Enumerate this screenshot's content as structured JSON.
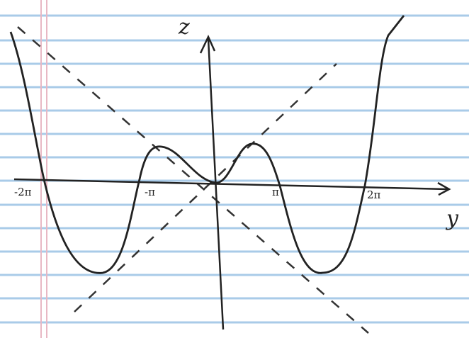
{
  "axes": {
    "vertical_label": "z",
    "horizontal_label": "y",
    "ticks": [
      "-2π",
      "-π",
      "π",
      "2π"
    ]
  }
}
